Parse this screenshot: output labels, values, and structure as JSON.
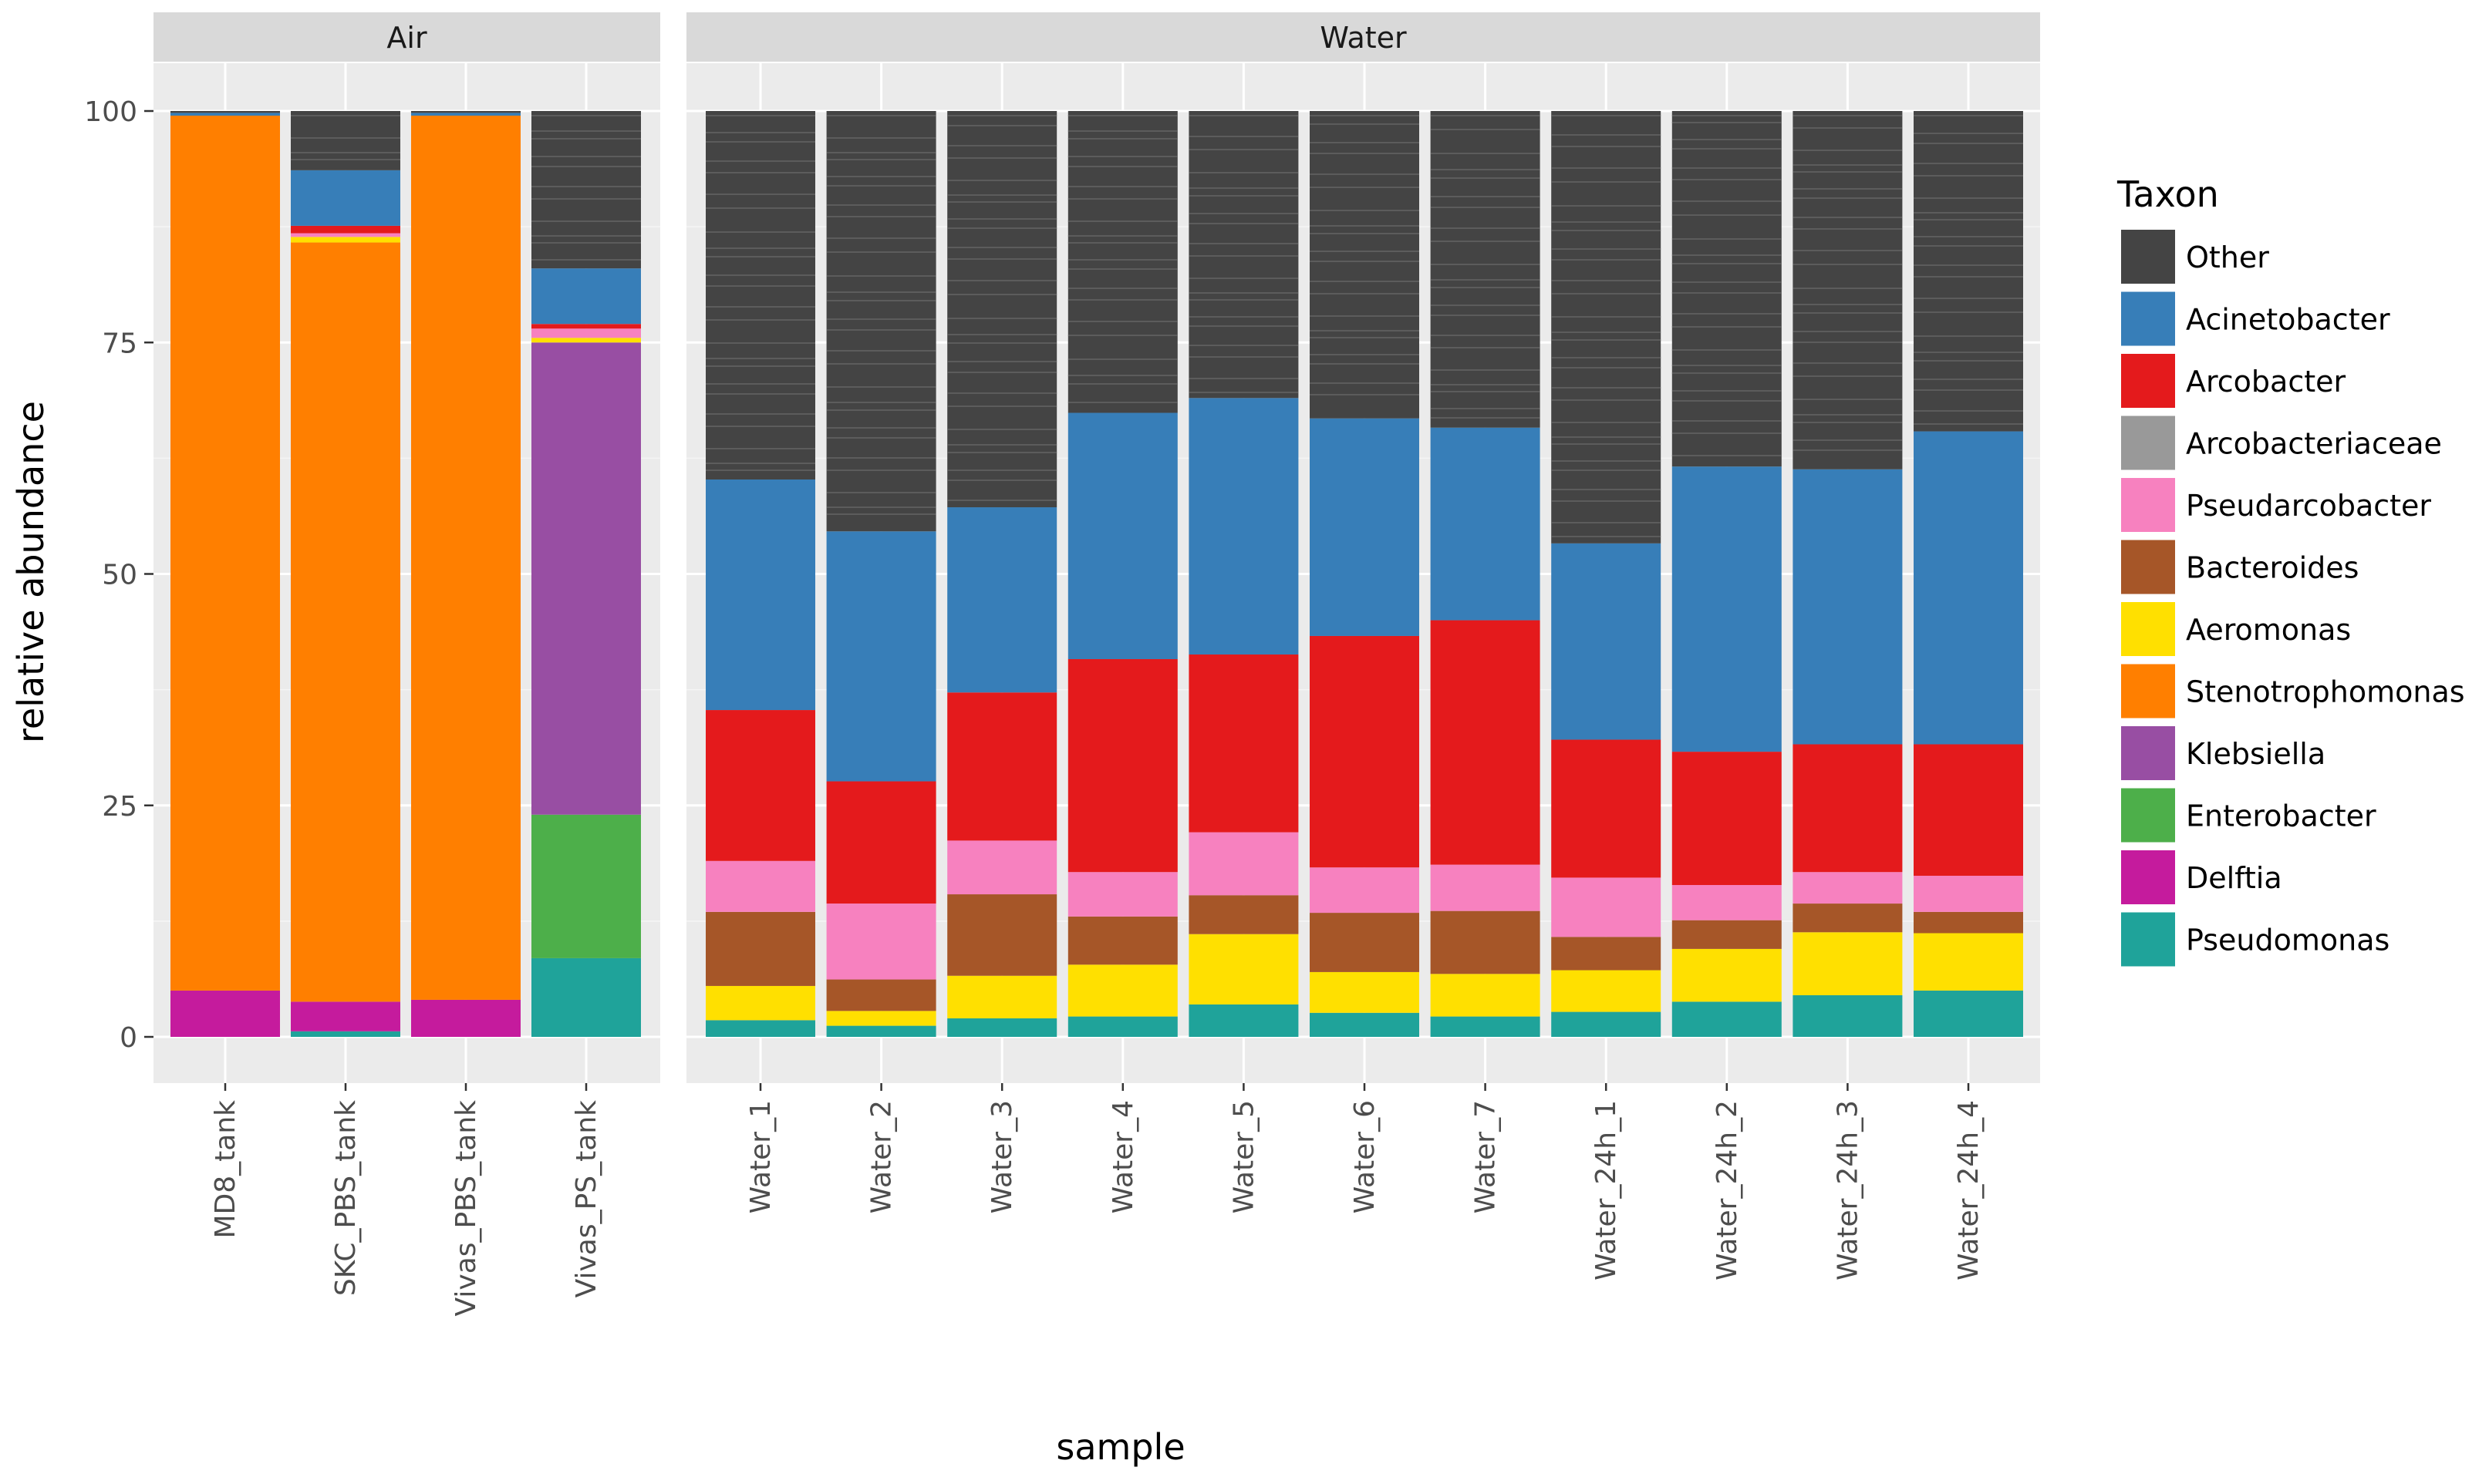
{
  "chart_data": {
    "type": "bar",
    "stacked": true,
    "xlabel": "sample",
    "ylabel": "relative abundance",
    "ylim": [
      0,
      100
    ],
    "yticks": [
      0,
      25,
      50,
      75,
      100
    ],
    "grid": true,
    "legend": {
      "title": "Taxon",
      "position": "right",
      "items": [
        {
          "name": "Other",
          "color": "#444444"
        },
        {
          "name": "Acinetobacter",
          "color": "#377EB8"
        },
        {
          "name": "Arcobacter",
          "color": "#E41A1C"
        },
        {
          "name": "Arcobacteriaceae",
          "color": "#999999"
        },
        {
          "name": "Pseudarcobacter",
          "color": "#F781BF"
        },
        {
          "name": "Bacteroides",
          "color": "#A65628"
        },
        {
          "name": "Aeromonas",
          "color": "#FFE000"
        },
        {
          "name": "Stenotrophomonas",
          "color": "#FF7F00"
        },
        {
          "name": "Klebsiella",
          "color": "#984EA3"
        },
        {
          "name": "Enterobacter",
          "color": "#4DAF4A"
        },
        {
          "name": "Delftia",
          "color": "#C51B9D"
        },
        {
          "name": "Pseudomonas",
          "color": "#1FA39A"
        }
      ]
    },
    "stack_order_bottom_to_top": [
      "Pseudomonas",
      "Delftia",
      "Enterobacter",
      "Klebsiella",
      "Stenotrophomonas",
      "Aeromonas",
      "Bacteroides",
      "Pseudarcobacter",
      "Arcobacteriaceae",
      "Arcobacter",
      "Acinetobacter",
      "Other"
    ],
    "facets": [
      {
        "label": "Air",
        "samples": [
          {
            "name": "MD8_tank",
            "values": {
              "Pseudomonas": 0,
              "Delftia": 5,
              "Enterobacter": 0,
              "Klebsiella": 0,
              "Stenotrophomonas": 94.5,
              "Aeromonas": 0,
              "Bacteroides": 0,
              "Pseudarcobacter": 0,
              "Arcobacteriaceae": 0,
              "Arcobacter": 0,
              "Acinetobacter": 0.3,
              "Other": 0.2
            }
          },
          {
            "name": "SKC_PBS_tank",
            "values": {
              "Pseudomonas": 0.6,
              "Delftia": 3.2,
              "Enterobacter": 0,
              "Klebsiella": 0,
              "Stenotrophomonas": 82,
              "Aeromonas": 0.6,
              "Bacteroides": 0,
              "Pseudarcobacter": 0.4,
              "Arcobacteriaceae": 0,
              "Arcobacter": 0.8,
              "Acinetobacter": 6,
              "Other": 6.4
            }
          },
          {
            "name": "Vivas_PBS_tank",
            "values": {
              "Pseudomonas": 0,
              "Delftia": 4,
              "Enterobacter": 0,
              "Klebsiella": 0,
              "Stenotrophomonas": 95.5,
              "Aeromonas": 0,
              "Bacteroides": 0,
              "Pseudarcobacter": 0,
              "Arcobacteriaceae": 0,
              "Arcobacter": 0,
              "Acinetobacter": 0.3,
              "Other": 0.2
            }
          },
          {
            "name": "Vivas_PS_tank",
            "values": {
              "Pseudomonas": 8.5,
              "Delftia": 0,
              "Enterobacter": 15.5,
              "Klebsiella": 51,
              "Stenotrophomonas": 0,
              "Aeromonas": 0.5,
              "Bacteroides": 0,
              "Pseudarcobacter": 1,
              "Arcobacteriaceae": 0,
              "Arcobacter": 0.5,
              "Acinetobacter": 6,
              "Other": 17
            }
          }
        ]
      },
      {
        "label": "Water",
        "samples": [
          {
            "name": "Water_1",
            "values": {
              "Pseudomonas": 1.8,
              "Delftia": 0,
              "Enterobacter": 0,
              "Klebsiella": 0,
              "Stenotrophomonas": 0,
              "Aeromonas": 3.7,
              "Bacteroides": 8,
              "Pseudarcobacter": 5.5,
              "Arcobacteriaceae": 0,
              "Arcobacter": 16.3,
              "Acinetobacter": 24.9,
              "Other": 39.8
            }
          },
          {
            "name": "Water_2",
            "values": {
              "Pseudomonas": 1.2,
              "Delftia": 0,
              "Enterobacter": 0,
              "Klebsiella": 0,
              "Stenotrophomonas": 0,
              "Aeromonas": 1.6,
              "Bacteroides": 3.4,
              "Pseudarcobacter": 8.2,
              "Arcobacteriaceae": 0,
              "Arcobacter": 13.2,
              "Acinetobacter": 27,
              "Other": 45.4
            }
          },
          {
            "name": "Water_3",
            "values": {
              "Pseudomonas": 2,
              "Delftia": 0,
              "Enterobacter": 0,
              "Klebsiella": 0,
              "Stenotrophomonas": 0,
              "Aeromonas": 4.6,
              "Bacteroides": 8.8,
              "Pseudarcobacter": 5.8,
              "Arcobacteriaceae": 0,
              "Arcobacter": 16,
              "Acinetobacter": 20,
              "Other": 42.8
            }
          },
          {
            "name": "Water_4",
            "values": {
              "Pseudomonas": 2.2,
              "Delftia": 0,
              "Enterobacter": 0,
              "Klebsiella": 0,
              "Stenotrophomonas": 0,
              "Aeromonas": 5.6,
              "Bacteroides": 5.2,
              "Pseudarcobacter": 4.8,
              "Arcobacteriaceae": 0,
              "Arcobacter": 23,
              "Acinetobacter": 26.6,
              "Other": 32.6
            }
          },
          {
            "name": "Water_5",
            "values": {
              "Pseudomonas": 3.5,
              "Delftia": 0,
              "Enterobacter": 0,
              "Klebsiella": 0,
              "Stenotrophomonas": 0,
              "Aeromonas": 7.6,
              "Bacteroides": 4.2,
              "Pseudarcobacter": 6.8,
              "Arcobacteriaceae": 0,
              "Arcobacter": 19.2,
              "Acinetobacter": 27.7,
              "Other": 31
            }
          },
          {
            "name": "Water_6",
            "values": {
              "Pseudomonas": 2.6,
              "Delftia": 0,
              "Enterobacter": 0,
              "Klebsiella": 0,
              "Stenotrophomonas": 0,
              "Aeromonas": 4.4,
              "Bacteroides": 6.4,
              "Pseudarcobacter": 4.9,
              "Arcobacteriaceae": 0,
              "Arcobacter": 25,
              "Acinetobacter": 23.5,
              "Other": 33.2
            }
          },
          {
            "name": "Water_7",
            "values": {
              "Pseudomonas": 2.2,
              "Delftia": 0,
              "Enterobacter": 0,
              "Klebsiella": 0,
              "Stenotrophomonas": 0,
              "Aeromonas": 4.6,
              "Bacteroides": 6.8,
              "Pseudarcobacter": 5,
              "Arcobacteriaceae": 0,
              "Arcobacter": 26.4,
              "Acinetobacter": 20.8,
              "Other": 34.2
            }
          },
          {
            "name": "Water_24h_1",
            "values": {
              "Pseudomonas": 2.7,
              "Delftia": 0,
              "Enterobacter": 0,
              "Klebsiella": 0,
              "Stenotrophomonas": 0,
              "Aeromonas": 4.5,
              "Bacteroides": 3.6,
              "Pseudarcobacter": 6.4,
              "Arcobacteriaceae": 0,
              "Arcobacter": 14.9,
              "Acinetobacter": 21.2,
              "Other": 46.7
            }
          },
          {
            "name": "Water_24h_2",
            "values": {
              "Pseudomonas": 3.8,
              "Delftia": 0,
              "Enterobacter": 0,
              "Klebsiella": 0,
              "Stenotrophomonas": 0,
              "Aeromonas": 5.7,
              "Bacteroides": 3.1,
              "Pseudarcobacter": 3.8,
              "Arcobacteriaceae": 0,
              "Arcobacter": 14.4,
              "Acinetobacter": 30.8,
              "Other": 38.4
            }
          },
          {
            "name": "Water_24h_3",
            "values": {
              "Pseudomonas": 4.5,
              "Delftia": 0,
              "Enterobacter": 0,
              "Klebsiella": 0,
              "Stenotrophomonas": 0,
              "Aeromonas": 6.8,
              "Bacteroides": 3.1,
              "Pseudarcobacter": 3.4,
              "Arcobacteriaceae": 0,
              "Arcobacter": 13.8,
              "Acinetobacter": 29.7,
              "Other": 38.7
            }
          },
          {
            "name": "Water_24h_4",
            "values": {
              "Pseudomonas": 5,
              "Delftia": 0,
              "Enterobacter": 0,
              "Klebsiella": 0,
              "Stenotrophomonas": 0,
              "Aeromonas": 6.2,
              "Bacteroides": 2.3,
              "Pseudarcobacter": 3.9,
              "Arcobacteriaceae": 0,
              "Arcobacter": 14.2,
              "Acinetobacter": 33.8,
              "Other": 34.6
            }
          }
        ]
      }
    ]
  }
}
